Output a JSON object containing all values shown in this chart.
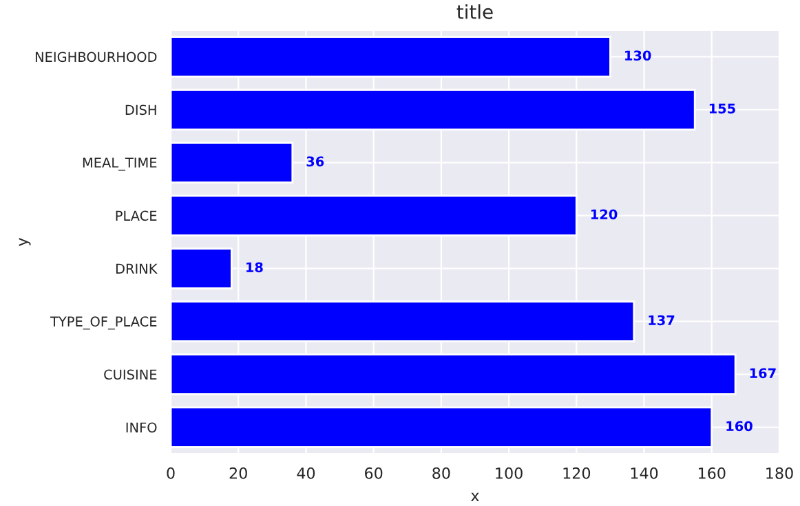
{
  "chart_data": {
    "type": "bar",
    "orientation": "horizontal",
    "title": "title",
    "xlabel": "x",
    "ylabel": "y",
    "categories": [
      "NEIGHBOURHOOD",
      "DISH",
      "MEAL_TIME",
      "PLACE",
      "DRINK",
      "TYPE_OF_PLACE",
      "CUISINE",
      "INFO"
    ],
    "values": [
      130,
      155,
      36,
      120,
      18,
      137,
      167,
      160
    ],
    "color": "#0000ff",
    "data_labels": true,
    "xlim": [
      0,
      180
    ],
    "xticks": [
      0,
      20,
      40,
      60,
      80,
      100,
      120,
      140,
      160,
      180
    ],
    "grid": true,
    "legend": false
  }
}
